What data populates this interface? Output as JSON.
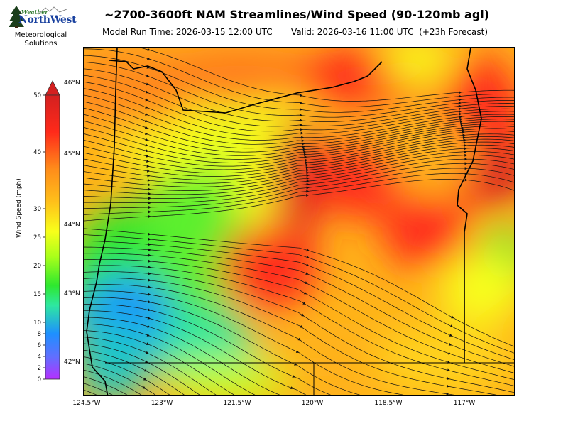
{
  "logo": {
    "top_text": "Weather",
    "brand": "NorthWest",
    "sub_line1": "Meteorological",
    "sub_line2": "Solutions"
  },
  "title": "~2700-3600ft NAM Streamlines/Wind Speed (90-120mb agl)",
  "model_run": "Model Run Time: 2026-03-15 12:00 UTC",
  "valid": "Valid: 2026-03-16 11:00 UTC  (+23h Forecast)",
  "colorbar": {
    "label": "Wind Speed (mph)",
    "ticks": [
      "0",
      "2",
      "4",
      "6",
      "8",
      "10",
      "15",
      "20",
      "25",
      "30",
      "40",
      "50"
    ],
    "tick_values": [
      0,
      2,
      4,
      6,
      8,
      10,
      15,
      20,
      25,
      30,
      40,
      50
    ]
  },
  "axes": {
    "lat_labels": [
      "46°N",
      "45°N",
      "44°N",
      "43°N",
      "42°N"
    ],
    "lon_labels": [
      "124.5°W",
      "123°W",
      "121.5°W",
      "120°W",
      "118.5°W",
      "117°W"
    ]
  },
  "colors": {
    "calm": "#b530ff",
    "light": "#1e90ff",
    "moderate": "#2ee82e",
    "fresh": "#f8ff1a",
    "strong": "#ff8c1a",
    "very_strong": "#ff2a1a",
    "max": "#d42020"
  }
}
